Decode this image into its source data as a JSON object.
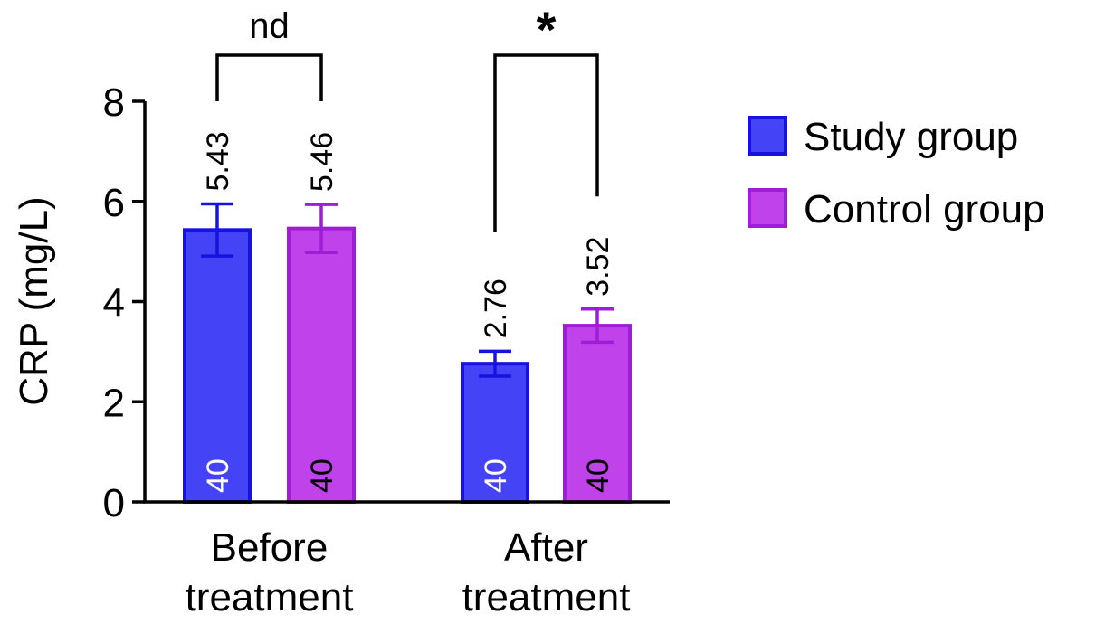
{
  "chart_data": {
    "type": "bar",
    "title": "",
    "ylabel": "CRP (mg/L)",
    "xlabel": "",
    "ylim": [
      0,
      8
    ],
    "yticks": [
      "0",
      "2",
      "4",
      "6",
      "8"
    ],
    "categories": [
      "Before treatment",
      "After treatment"
    ],
    "category_lines": [
      [
        "Before",
        "treatment"
      ],
      [
        "After",
        "treatment"
      ]
    ],
    "legend_position": "right",
    "grid": false,
    "series": [
      {
        "name": "Study group",
        "color": "#4443f5",
        "edge_color": "#1712dd",
        "values": [
          5.43,
          2.76
        ],
        "errors": [
          0.52,
          0.25
        ],
        "value_labels": [
          "5.43",
          "2.76"
        ],
        "n_labels": [
          "40",
          "40"
        ],
        "n_label_color": "#ffffff"
      },
      {
        "name": "Control group",
        "color": "#c042ea",
        "edge_color": "#9d1ed6",
        "values": [
          5.46,
          3.52
        ],
        "errors": [
          0.48,
          0.33
        ],
        "value_labels": [
          "5.46",
          "3.52"
        ],
        "n_labels": [
          "40",
          "40"
        ],
        "n_label_color": "#000000"
      }
    ],
    "significance": [
      {
        "category_index": 0,
        "label": "nd",
        "left_top": 8,
        "right_top": 8
      },
      {
        "category_index": 1,
        "label": "*",
        "left_top": 5.4,
        "right_top": 6.1
      }
    ]
  }
}
